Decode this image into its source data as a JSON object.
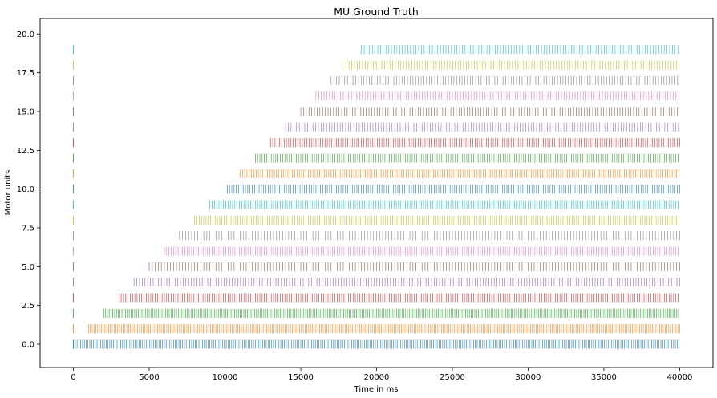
{
  "chart_data": {
    "type": "scatter",
    "title": "MU Ground Truth",
    "xlabel": "Time in ms",
    "ylabel": "Motor units",
    "xlim": [
      -2200,
      42200
    ],
    "ylim": [
      -1.5,
      21.0
    ],
    "x_ticks": [
      0,
      5000,
      10000,
      15000,
      20000,
      25000,
      30000,
      35000,
      40000
    ],
    "x_tick_labels": [
      "0",
      "5000",
      "10000",
      "15000",
      "20000",
      "25000",
      "30000",
      "35000",
      "40000"
    ],
    "y_ticks": [
      0.0,
      2.5,
      5.0,
      7.5,
      10.0,
      12.5,
      15.0,
      17.5,
      20.0
    ],
    "y_tick_labels": [
      "0.0",
      "2.5",
      "5.0",
      "7.5",
      "10.0",
      "12.5",
      "15.0",
      "17.5",
      "20.0"
    ],
    "grid": false,
    "legend": "none",
    "marker": "vertical tick",
    "series": [
      {
        "unit": 0,
        "color": "#1f77b4",
        "early_spike_ms": 0,
        "train_start_ms": 0,
        "train_end_ms": 40000,
        "spike_interval_ms": 120
      },
      {
        "unit": 1,
        "color": "#ff7f0e",
        "early_spike_ms": 0,
        "train_start_ms": 1000,
        "train_end_ms": 40000,
        "spike_interval_ms": 120
      },
      {
        "unit": 2,
        "color": "#2ca02c",
        "early_spike_ms": 0,
        "train_start_ms": 2000,
        "train_end_ms": 40000,
        "spike_interval_ms": 120
      },
      {
        "unit": 3,
        "color": "#d62728",
        "early_spike_ms": 0,
        "train_start_ms": 3000,
        "train_end_ms": 40000,
        "spike_interval_ms": 150
      },
      {
        "unit": 4,
        "color": "#9467bd",
        "early_spike_ms": 0,
        "train_start_ms": 4000,
        "train_end_ms": 40000,
        "spike_interval_ms": 180
      },
      {
        "unit": 5,
        "color": "#8c564b",
        "early_spike_ms": 0,
        "train_start_ms": 5000,
        "train_end_ms": 40000,
        "spike_interval_ms": 200
      },
      {
        "unit": 6,
        "color": "#e377c2",
        "early_spike_ms": 0,
        "train_start_ms": 6000,
        "train_end_ms": 40000,
        "spike_interval_ms": 150
      },
      {
        "unit": 7,
        "color": "#7f7f7f",
        "early_spike_ms": 0,
        "train_start_ms": 7000,
        "train_end_ms": 40000,
        "spike_interval_ms": 200
      },
      {
        "unit": 8,
        "color": "#bcbd22",
        "early_spike_ms": 0,
        "train_start_ms": 8000,
        "train_end_ms": 40000,
        "spike_interval_ms": 150
      },
      {
        "unit": 9,
        "color": "#17becf",
        "early_spike_ms": 0,
        "train_start_ms": 9000,
        "train_end_ms": 40000,
        "spike_interval_ms": 150
      },
      {
        "unit": 10,
        "color": "#1f77b4",
        "early_spike_ms": 0,
        "train_start_ms": 10000,
        "train_end_ms": 40000,
        "spike_interval_ms": 150
      },
      {
        "unit": 11,
        "color": "#ff7f0e",
        "early_spike_ms": 0,
        "train_start_ms": 11000,
        "train_end_ms": 40000,
        "spike_interval_ms": 150
      },
      {
        "unit": 12,
        "color": "#2ca02c",
        "early_spike_ms": 0,
        "train_start_ms": 12000,
        "train_end_ms": 40000,
        "spike_interval_ms": 150
      },
      {
        "unit": 13,
        "color": "#d62728",
        "early_spike_ms": 0,
        "train_start_ms": 13000,
        "train_end_ms": 40000,
        "spike_interval_ms": 150
      },
      {
        "unit": 14,
        "color": "#9467bd",
        "early_spike_ms": 0,
        "train_start_ms": 14000,
        "train_end_ms": 40000,
        "spike_interval_ms": 180
      },
      {
        "unit": 15,
        "color": "#8c564b",
        "early_spike_ms": 0,
        "train_start_ms": 15000,
        "train_end_ms": 40000,
        "spike_interval_ms": 180
      },
      {
        "unit": 16,
        "color": "#e377c2",
        "early_spike_ms": 0,
        "train_start_ms": 16000,
        "train_end_ms": 40000,
        "spike_interval_ms": 180
      },
      {
        "unit": 17,
        "color": "#7f7f7f",
        "early_spike_ms": 0,
        "train_start_ms": 17000,
        "train_end_ms": 40000,
        "spike_interval_ms": 180
      },
      {
        "unit": 18,
        "color": "#bcbd22",
        "early_spike_ms": 0,
        "train_start_ms": 18000,
        "train_end_ms": 40000,
        "spike_interval_ms": 180
      },
      {
        "unit": 19,
        "color": "#17becf",
        "early_spike_ms": 0,
        "train_start_ms": 19000,
        "train_end_ms": 40000,
        "spike_interval_ms": 180
      }
    ]
  }
}
